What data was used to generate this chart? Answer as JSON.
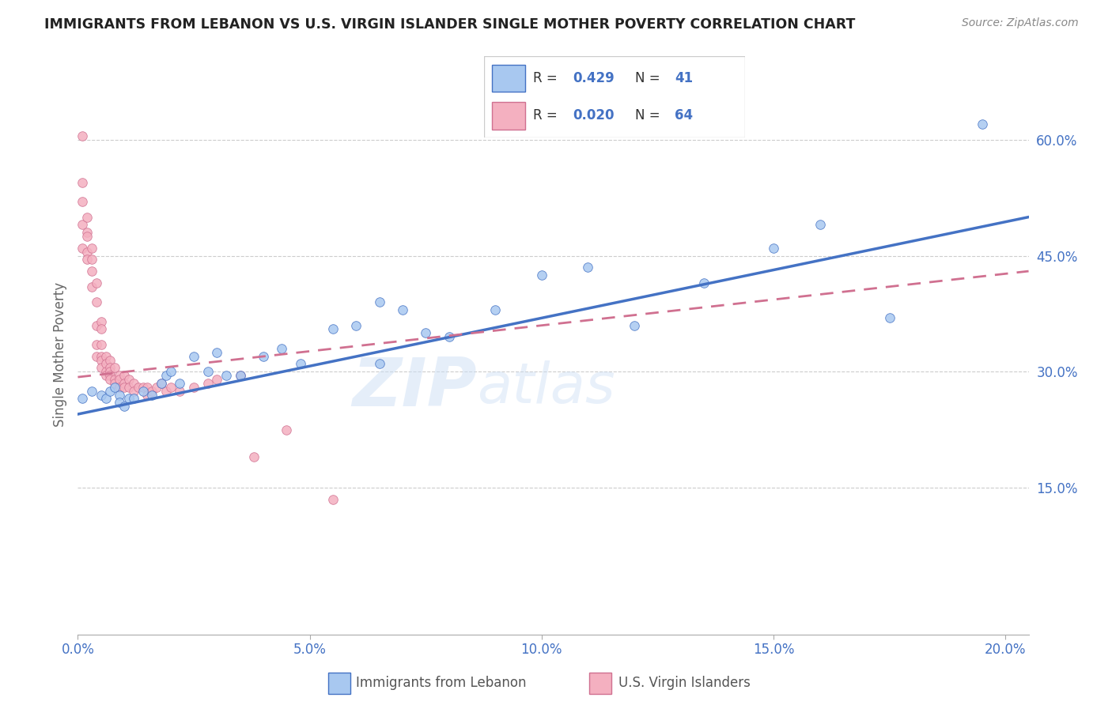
{
  "title": "IMMIGRANTS FROM LEBANON VS U.S. VIRGIN ISLANDER SINGLE MOTHER POVERTY CORRELATION CHART",
  "source": "Source: ZipAtlas.com",
  "ylabel": "Single Mother Poverty",
  "watermark": "ZIPatlas",
  "legend_blue_label": "Immigrants from Lebanon",
  "legend_pink_label": "U.S. Virgin Islanders",
  "R_blue": 0.429,
  "N_blue": 41,
  "R_pink": 0.02,
  "N_pink": 64,
  "xlim": [
    0.0,
    0.205
  ],
  "ylim": [
    -0.04,
    0.685
  ],
  "x_ticks": [
    0.0,
    0.05,
    0.1,
    0.15,
    0.2
  ],
  "x_tick_labels": [
    "0.0%",
    "5.0%",
    "10.0%",
    "15.0%",
    "20.0%"
  ],
  "y_ticks": [
    0.15,
    0.3,
    0.45,
    0.6
  ],
  "y_tick_labels": [
    "15.0%",
    "30.0%",
    "45.0%",
    "60.0%"
  ],
  "color_blue_fill": "#a8c8f0",
  "color_blue_edge": "#4472c4",
  "color_blue_line": "#4472c4",
  "color_pink_fill": "#f4b0c0",
  "color_pink_edge": "#d07090",
  "color_pink_line": "#d07090",
  "color_axis_text": "#4472c4",
  "blue_scatter_x": [
    0.001,
    0.003,
    0.005,
    0.006,
    0.007,
    0.008,
    0.009,
    0.009,
    0.01,
    0.011,
    0.012,
    0.014,
    0.016,
    0.018,
    0.019,
    0.02,
    0.022,
    0.025,
    0.028,
    0.03,
    0.032,
    0.035,
    0.04,
    0.044,
    0.048,
    0.055,
    0.06,
    0.065,
    0.065,
    0.07,
    0.075,
    0.08,
    0.09,
    0.1,
    0.11,
    0.12,
    0.135,
    0.15,
    0.16,
    0.175,
    0.195
  ],
  "blue_scatter_y": [
    0.265,
    0.275,
    0.27,
    0.265,
    0.275,
    0.28,
    0.27,
    0.26,
    0.255,
    0.265,
    0.265,
    0.275,
    0.27,
    0.285,
    0.295,
    0.3,
    0.285,
    0.32,
    0.3,
    0.325,
    0.295,
    0.295,
    0.32,
    0.33,
    0.31,
    0.355,
    0.36,
    0.39,
    0.31,
    0.38,
    0.35,
    0.345,
    0.38,
    0.425,
    0.435,
    0.36,
    0.415,
    0.46,
    0.49,
    0.37,
    0.62
  ],
  "pink_scatter_x": [
    0.001,
    0.001,
    0.001,
    0.001,
    0.001,
    0.002,
    0.002,
    0.002,
    0.002,
    0.002,
    0.003,
    0.003,
    0.003,
    0.003,
    0.004,
    0.004,
    0.004,
    0.004,
    0.004,
    0.005,
    0.005,
    0.005,
    0.005,
    0.005,
    0.005,
    0.006,
    0.006,
    0.006,
    0.006,
    0.007,
    0.007,
    0.007,
    0.007,
    0.007,
    0.008,
    0.008,
    0.008,
    0.009,
    0.009,
    0.009,
    0.01,
    0.01,
    0.01,
    0.011,
    0.011,
    0.012,
    0.012,
    0.013,
    0.014,
    0.015,
    0.015,
    0.016,
    0.017,
    0.018,
    0.019,
    0.02,
    0.022,
    0.025,
    0.028,
    0.03,
    0.035,
    0.038,
    0.045,
    0.055
  ],
  "pink_scatter_y": [
    0.605,
    0.545,
    0.52,
    0.49,
    0.46,
    0.5,
    0.48,
    0.475,
    0.455,
    0.445,
    0.46,
    0.445,
    0.43,
    0.41,
    0.415,
    0.39,
    0.36,
    0.335,
    0.32,
    0.365,
    0.355,
    0.335,
    0.32,
    0.315,
    0.305,
    0.32,
    0.31,
    0.3,
    0.295,
    0.315,
    0.305,
    0.3,
    0.295,
    0.29,
    0.305,
    0.29,
    0.285,
    0.295,
    0.29,
    0.28,
    0.295,
    0.285,
    0.28,
    0.29,
    0.28,
    0.285,
    0.275,
    0.28,
    0.28,
    0.28,
    0.27,
    0.275,
    0.28,
    0.285,
    0.275,
    0.28,
    0.275,
    0.28,
    0.285,
    0.29,
    0.295,
    0.19,
    0.225,
    0.135
  ],
  "pink_trend_x": [
    0.0,
    0.205
  ],
  "pink_trend_y": [
    0.293,
    0.43
  ],
  "blue_trend_x": [
    0.0,
    0.205
  ],
  "blue_trend_y": [
    0.245,
    0.5
  ]
}
